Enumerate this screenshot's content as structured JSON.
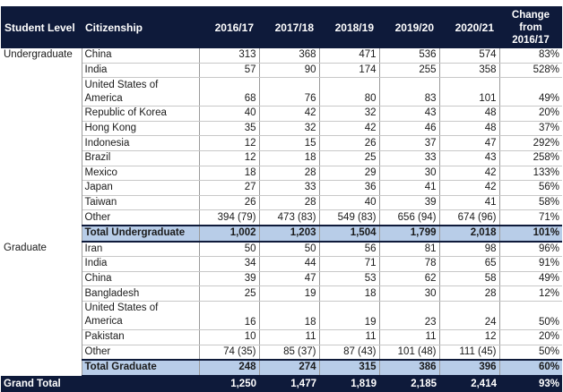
{
  "header": {
    "student_level": "Student Level",
    "citizenship": "Citizenship",
    "years": [
      "2016/17",
      "2017/18",
      "2018/19",
      "2019/20",
      "2020/21"
    ],
    "change_line1": "Change",
    "change_line2": "from",
    "change_line3": "2016/17"
  },
  "undergraduate": {
    "level": "Undergraduate",
    "rows": [
      {
        "citizenship": "China",
        "values": [
          "313",
          "368",
          "471",
          "536",
          "574"
        ],
        "change": "83%"
      },
      {
        "citizenship": "India",
        "values": [
          "57",
          "90",
          "174",
          "255",
          "358"
        ],
        "change": "528%"
      },
      {
        "citizenship": "United States of America",
        "values": [
          "68",
          "76",
          "80",
          "83",
          "101"
        ],
        "change": "49%"
      },
      {
        "citizenship": "Republic of Korea",
        "values": [
          "40",
          "42",
          "32",
          "43",
          "48"
        ],
        "change": "20%"
      },
      {
        "citizenship": "Hong Kong",
        "values": [
          "35",
          "32",
          "42",
          "46",
          "48"
        ],
        "change": "37%"
      },
      {
        "citizenship": "Indonesia",
        "values": [
          "12",
          "15",
          "26",
          "37",
          "47"
        ],
        "change": "292%"
      },
      {
        "citizenship": "Brazil",
        "values": [
          "12",
          "18",
          "25",
          "33",
          "43"
        ],
        "change": "258%"
      },
      {
        "citizenship": "Mexico",
        "values": [
          "18",
          "28",
          "29",
          "30",
          "42"
        ],
        "change": "133%"
      },
      {
        "citizenship": "Japan",
        "values": [
          "27",
          "33",
          "36",
          "41",
          "42"
        ],
        "change": "56%"
      },
      {
        "citizenship": "Taiwan",
        "values": [
          "26",
          "28",
          "40",
          "39",
          "41"
        ],
        "change": "58%"
      },
      {
        "citizenship": "Other",
        "values": [
          "394 (79)",
          "473 (83)",
          "549 (83)",
          "656 (94)",
          "674 (96)"
        ],
        "change": "71%"
      }
    ],
    "total": {
      "label": "Total Undergraduate",
      "values": [
        "1,002",
        "1,203",
        "1,504",
        "1,799",
        "2,018"
      ],
      "change": "101%"
    }
  },
  "graduate": {
    "level": "Graduate",
    "rows": [
      {
        "citizenship": "Iran",
        "values": [
          "50",
          "50",
          "56",
          "81",
          "98"
        ],
        "change": "96%"
      },
      {
        "citizenship": "India",
        "values": [
          "34",
          "44",
          "71",
          "78",
          "65"
        ],
        "change": "91%"
      },
      {
        "citizenship": "China",
        "values": [
          "39",
          "47",
          "53",
          "62",
          "58"
        ],
        "change": "49%"
      },
      {
        "citizenship": "Bangladesh",
        "values": [
          "25",
          "19",
          "18",
          "30",
          "28"
        ],
        "change": "12%"
      },
      {
        "citizenship": "United States of America",
        "values": [
          "16",
          "18",
          "19",
          "23",
          "24"
        ],
        "change": "50%"
      },
      {
        "citizenship": "Pakistan",
        "values": [
          "10",
          "11",
          "11",
          "11",
          "12"
        ],
        "change": "20%"
      },
      {
        "citizenship": "Other",
        "values": [
          "74 (35)",
          "85 (37)",
          "87 (43)",
          "101 (48)",
          "111 (45)"
        ],
        "change": "50%"
      }
    ],
    "total": {
      "label": "Total Graduate",
      "values": [
        "248",
        "274",
        "315",
        "386",
        "396"
      ],
      "change": "60%"
    }
  },
  "grand_total": {
    "label": "Grand Total",
    "values": [
      "1,250",
      "1,477",
      "1,819",
      "2,185",
      "2,414"
    ],
    "change": "93%"
  },
  "colors": {
    "header_bg": "#0e1a3a",
    "total_bg": "#b8cde8"
  }
}
